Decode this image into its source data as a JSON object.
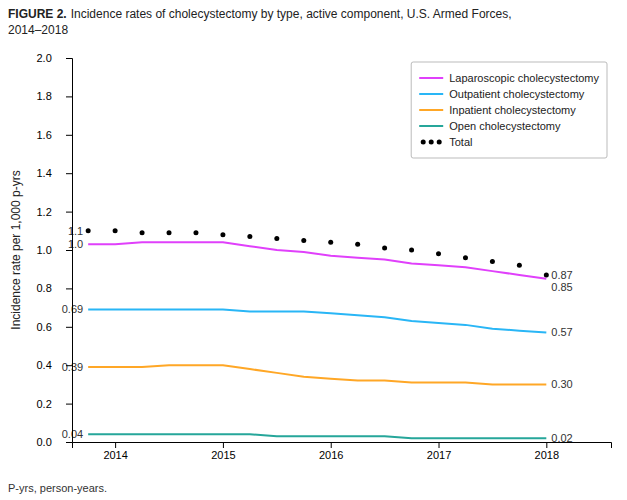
{
  "chart_data": {
    "type": "line",
    "title": "FIGURE 2.",
    "subtitle": "Incidence rates of cholecystectomy by type, active component, U.S. Armed Forces,\n2014–2018",
    "y_label": "Incidence rate per 1,000 p-yrs",
    "annotations": [
      "P-yrs, person-years."
    ],
    "x": [
      2013.75,
      2014,
      2014.25,
      2014.5,
      2014.75,
      2015,
      2015.25,
      2015.5,
      2015.75,
      2016,
      2016.25,
      2016.5,
      2016.75,
      2017,
      2017.25,
      2017.5,
      2017.75,
      2018
    ],
    "series": [
      {
        "name": "Laparoscopic cholecystectomy",
        "color": "#e040fb",
        "line_style": "solid",
        "values": [
          1.03,
          1.03,
          1.04,
          1.04,
          1.04,
          1.04,
          1.02,
          1.0,
          0.99,
          0.97,
          0.96,
          0.95,
          0.93,
          0.92,
          0.91,
          0.89,
          0.87,
          0.85
        ],
        "value_labels": [
          "1.0",
          null,
          null,
          null,
          null,
          null,
          null,
          null,
          null,
          null,
          null,
          null,
          null,
          null,
          null,
          null,
          null,
          "0.85"
        ]
      },
      {
        "name": "Outpatient cholecystectomy",
        "color": "#29b6f6",
        "line_style": "solid",
        "values": [
          0.69,
          0.69,
          0.69,
          0.69,
          0.69,
          0.69,
          0.68,
          0.68,
          0.68,
          0.67,
          0.66,
          0.65,
          0.63,
          0.62,
          0.61,
          0.59,
          0.58,
          0.57
        ],
        "value_labels": [
          "0.69",
          null,
          null,
          null,
          null,
          null,
          null,
          null,
          null,
          null,
          null,
          null,
          null,
          null,
          null,
          null,
          null,
          "0.57"
        ]
      },
      {
        "name": "Inpatient cholecystectomy",
        "color": "#ffa726",
        "line_style": "solid",
        "values": [
          0.39,
          0.39,
          0.39,
          0.4,
          0.4,
          0.4,
          0.38,
          0.36,
          0.34,
          0.33,
          0.32,
          0.32,
          0.31,
          0.31,
          0.31,
          0.3,
          0.3,
          0.3
        ],
        "value_labels": [
          "0.39",
          null,
          null,
          null,
          null,
          null,
          null,
          null,
          null,
          null,
          null,
          null,
          null,
          null,
          null,
          null,
          null,
          "0.30"
        ]
      },
      {
        "name": "Open cholecystectomy",
        "color": "#26a69a",
        "line_style": "solid",
        "values": [
          0.04,
          0.04,
          0.04,
          0.04,
          0.04,
          0.04,
          0.04,
          0.03,
          0.03,
          0.03,
          0.03,
          0.03,
          0.02,
          0.02,
          0.02,
          0.02,
          0.02,
          0.02
        ],
        "value_labels": [
          "0.04",
          null,
          null,
          null,
          null,
          null,
          null,
          null,
          null,
          null,
          null,
          null,
          null,
          null,
          null,
          null,
          null,
          "0.02"
        ]
      },
      {
        "name": "Total",
        "color": "#000000",
        "line_style": "none",
        "marker": "point",
        "values": [
          1.1,
          1.1,
          1.09,
          1.09,
          1.09,
          1.08,
          1.07,
          1.06,
          1.05,
          1.04,
          1.03,
          1.01,
          1.0,
          0.98,
          0.96,
          0.94,
          0.92,
          0.87
        ],
        "value_labels": [
          "1.1",
          null,
          null,
          null,
          null,
          null,
          null,
          null,
          null,
          null,
          null,
          null,
          null,
          null,
          null,
          null,
          null,
          "0.87"
        ]
      }
    ],
    "xlim": [
      2013.6,
      2018.6
    ],
    "ylim": [
      0.0,
      2.0
    ],
    "xticks": [
      2014,
      2015,
      2016,
      2017,
      2018
    ],
    "yticks": [
      {
        "value": 0,
        "label": "0.0"
      },
      0.2,
      0.4,
      0.6,
      0.8,
      {
        "value": 1,
        "label": "1.0"
      },
      1.2,
      1.4,
      1.6,
      1.8,
      {
        "value": 2,
        "label": "2.0"
      }
    ],
    "grid": false,
    "legend": "upper right"
  }
}
